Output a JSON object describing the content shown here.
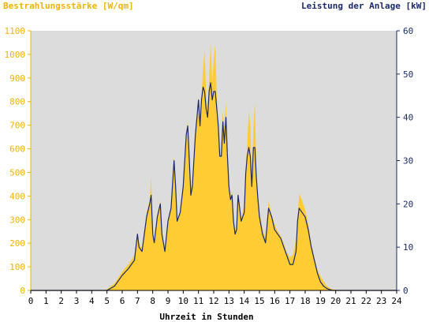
{
  "header": {
    "left_title": "Bestrahlungsstärke [W/qm]",
    "right_title": "Leistung der Anlage [kW]"
  },
  "chart_data": {
    "type": "area",
    "xlabel": "Uhrzeit in Stunden",
    "x_ticks": [
      "0",
      "1",
      "2",
      "3",
      "4",
      "5",
      "6",
      "7",
      "8",
      "9",
      "10",
      "11",
      "12",
      "13",
      "14",
      "15",
      "16",
      "17",
      "18",
      "19",
      "20",
      "21",
      "22",
      "23",
      "24"
    ],
    "y_left_ticks": [
      "0",
      "100",
      "200",
      "300",
      "400",
      "500",
      "600",
      "700",
      "800",
      "900",
      "1000",
      "1100"
    ],
    "y_right_ticks": [
      "0",
      "10",
      "20",
      "30",
      "40",
      "50",
      "60"
    ],
    "xlim": [
      0,
      24
    ],
    "ylim_left": [
      0,
      1100
    ],
    "ylim_right": [
      0,
      60
    ],
    "grid": false,
    "colors": {
      "plot_background": "#dcdcdc",
      "irradiance_fill": "#ffcc33",
      "power_line": "#1a2a6c",
      "left_axis_text": "#f0b400",
      "right_axis_text": "#1a2a6c"
    },
    "series": [
      {
        "axis": "left",
        "kind": "area",
        "x": [
          0,
          4.9,
          5.5,
          6.0,
          6.4,
          6.8,
          7.0,
          7.1,
          7.3,
          7.6,
          7.8,
          7.9,
          8.0,
          8.1,
          8.3,
          8.5,
          8.6,
          8.8,
          9.0,
          9.2,
          9.4,
          9.5,
          9.6,
          9.8,
          10.0,
          10.2,
          10.3,
          10.4,
          10.5,
          10.6,
          10.8,
          11.0,
          11.1,
          11.2,
          11.3,
          11.4,
          11.5,
          11.6,
          11.7,
          11.8,
          11.9,
          12.0,
          12.1,
          12.2,
          12.3,
          12.4,
          12.5,
          12.6,
          12.7,
          12.8,
          12.9,
          13.0,
          13.1,
          13.2,
          13.3,
          13.4,
          13.5,
          13.6,
          13.7,
          13.8,
          14.0,
          14.1,
          14.2,
          14.3,
          14.4,
          14.5,
          14.6,
          14.7,
          14.8,
          14.9,
          15.0,
          15.2,
          15.4,
          15.6,
          15.8,
          16.0,
          16.2,
          16.4,
          16.6,
          16.8,
          17.0,
          17.2,
          17.4,
          17.5,
          17.6,
          17.8,
          18.0,
          18.2,
          18.4,
          18.6,
          18.8,
          19.0,
          19.2,
          19.4,
          19.6,
          19.8,
          20.0,
          20.2,
          24
        ],
        "y": [
          0,
          0,
          30,
          80,
          110,
          150,
          250,
          200,
          180,
          330,
          380,
          480,
          260,
          200,
          320,
          380,
          260,
          170,
          300,
          350,
          570,
          450,
          300,
          340,
          440,
          660,
          720,
          560,
          420,
          460,
          680,
          820,
          700,
          820,
          940,
          1020,
          840,
          760,
          900,
          1050,
          880,
          980,
          1040,
          820,
          700,
          560,
          600,
          760,
          680,
          800,
          600,
          460,
          400,
          420,
          300,
          250,
          280,
          420,
          360,
          300,
          360,
          520,
          620,
          760,
          700,
          460,
          680,
          800,
          500,
          400,
          330,
          260,
          220,
          380,
          320,
          280,
          250,
          230,
          200,
          160,
          140,
          150,
          220,
          300,
          410,
          380,
          340,
          280,
          200,
          140,
          90,
          60,
          40,
          20,
          10,
          5,
          2,
          0,
          0
        ]
      },
      {
        "axis": "right",
        "kind": "line",
        "x": [
          0,
          5.0,
          5.5,
          6.0,
          6.4,
          6.8,
          7.0,
          7.1,
          7.3,
          7.6,
          7.8,
          7.9,
          8.0,
          8.1,
          8.3,
          8.5,
          8.6,
          8.8,
          9.0,
          9.2,
          9.4,
          9.5,
          9.6,
          9.8,
          10.0,
          10.2,
          10.3,
          10.4,
          10.5,
          10.6,
          10.8,
          11.0,
          11.1,
          11.2,
          11.3,
          11.4,
          11.5,
          11.6,
          11.7,
          11.8,
          11.9,
          12.0,
          12.1,
          12.2,
          12.3,
          12.4,
          12.5,
          12.6,
          12.7,
          12.8,
          12.9,
          13.0,
          13.1,
          13.2,
          13.3,
          13.4,
          13.5,
          13.6,
          13.7,
          13.8,
          14.0,
          14.1,
          14.2,
          14.3,
          14.4,
          14.5,
          14.6,
          14.7,
          14.8,
          14.9,
          15.0,
          15.2,
          15.4,
          15.6,
          15.8,
          16.0,
          16.2,
          16.4,
          16.6,
          16.8,
          17.0,
          17.2,
          17.4,
          17.5,
          17.6,
          17.8,
          18.0,
          18.2,
          18.4,
          18.6,
          18.8,
          19.0,
          19.2,
          19.4,
          19.6,
          19.8,
          20.0,
          20.2,
          24
        ],
        "y": [
          0,
          0,
          1,
          3.5,
          5,
          7,
          13,
          10,
          9,
          17,
          20,
          22,
          13,
          11,
          17,
          20,
          13,
          9,
          16,
          19,
          30,
          24,
          16,
          18,
          24,
          36,
          38,
          30,
          22,
          24,
          36,
          44,
          38,
          44,
          47,
          46,
          42,
          40,
          46,
          48,
          44,
          46,
          46,
          42,
          38,
          31,
          31,
          39,
          34,
          40,
          31,
          24,
          21,
          22,
          16,
          13,
          14,
          22,
          19,
          16,
          18,
          27,
          31,
          33,
          31,
          24,
          33,
          33,
          26,
          21,
          17,
          13,
          11,
          19,
          17,
          14,
          13,
          12,
          10,
          8,
          6,
          6,
          9,
          16,
          19,
          18,
          17,
          14,
          10,
          7,
          4,
          2,
          1,
          0.5,
          0.2,
          0,
          0,
          0,
          0
        ]
      }
    ]
  }
}
